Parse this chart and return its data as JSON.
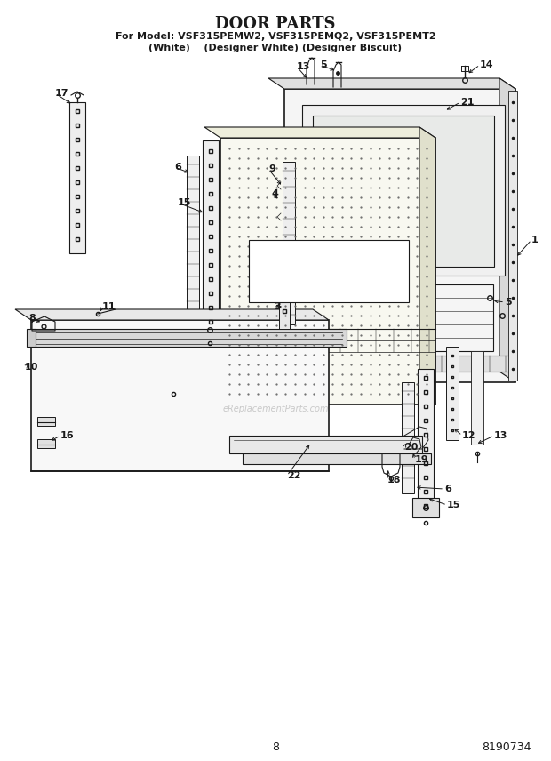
{
  "title": "DOOR PARTS",
  "subtitle_line1": "For Model: VSF315PEMW2, VSF315PEMQ2, VSF315PEMT2",
  "subtitle_line2": "(White)    (Designer White) (Designer Biscuit)",
  "page_number": "8",
  "part_number": "8190734",
  "bg": "#ffffff",
  "col": "#1a1a1a",
  "watermark": "eReplacementParts.com",
  "title_fs": 13,
  "sub1_fs": 8,
  "sub2_fs": 8,
  "footer_fs": 9,
  "label_fs": 8
}
